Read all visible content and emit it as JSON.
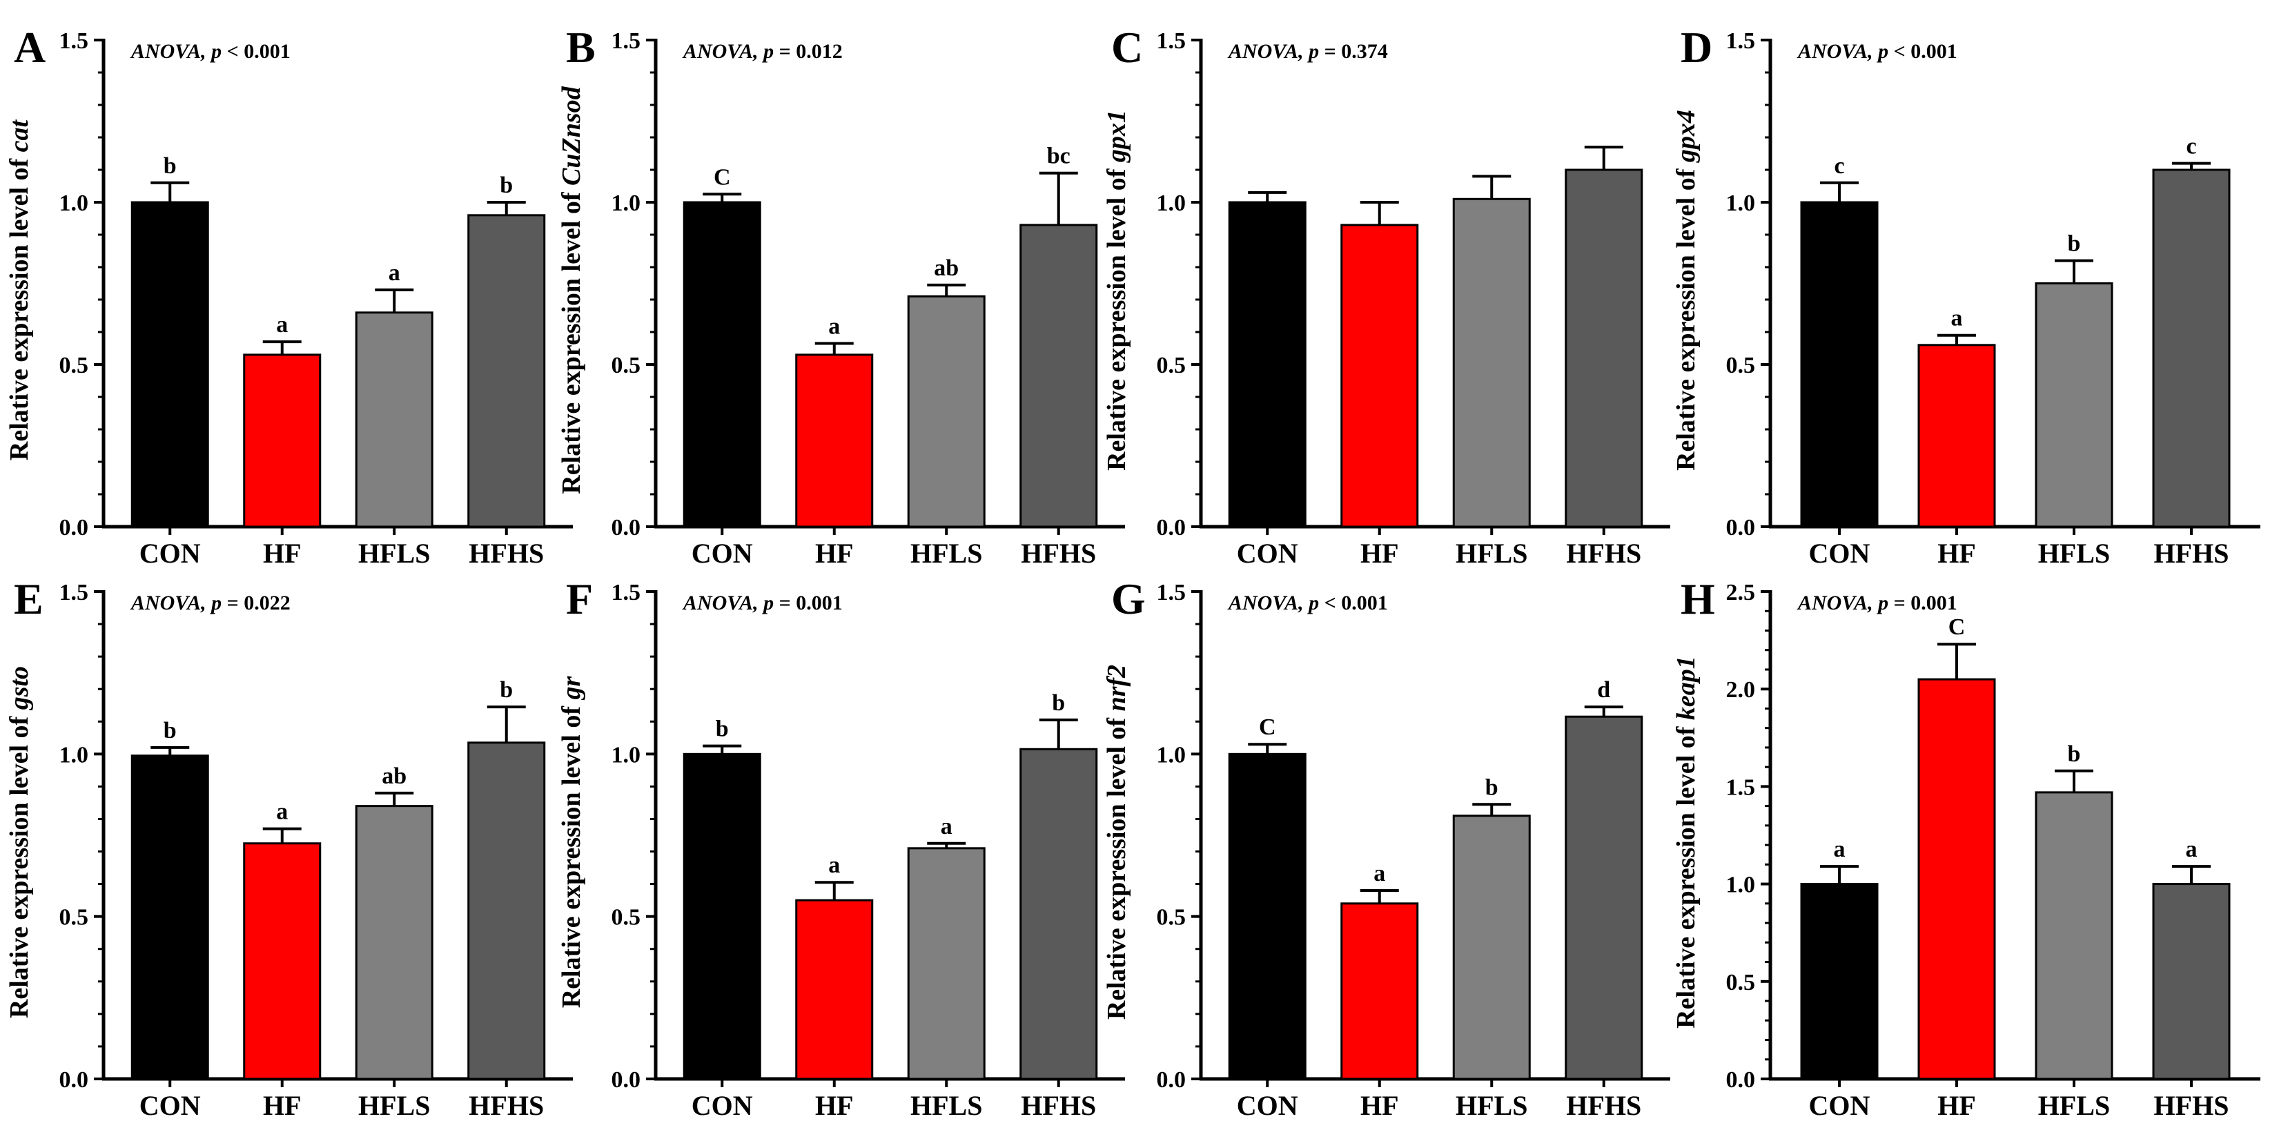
{
  "chart_data": [
    {
      "panel": "A",
      "type": "bar",
      "gene": "cat",
      "ylabel_prefix": "Relative expression level of ",
      "anova_label": "ANOVA,",
      "anova_p": "p < 0.001",
      "categories": [
        "CON",
        "HF",
        "HFLS",
        "HFHS"
      ],
      "values": [
        1.0,
        0.53,
        0.66,
        0.96
      ],
      "errors": [
        0.06,
        0.04,
        0.07,
        0.04
      ],
      "letters": [
        "b",
        "a",
        "a",
        "b"
      ],
      "ylim": [
        0,
        1.5
      ],
      "yticks": [
        "0.0",
        "0.5",
        "1.0",
        "1.5"
      ],
      "colors": [
        "#000000",
        "#ff0000",
        "#808080",
        "#5a5a5a"
      ]
    },
    {
      "panel": "B",
      "type": "bar",
      "gene": "CuZnsod",
      "ylabel_prefix": "Relative expression level of ",
      "anova_label": "ANOVA,",
      "anova_p": "p = 0.012",
      "categories": [
        "CON",
        "HF",
        "HFLS",
        "HFHS"
      ],
      "values": [
        1.0,
        0.53,
        0.71,
        0.93
      ],
      "errors": [
        0.025,
        0.035,
        0.035,
        0.16
      ],
      "letters": [
        "C",
        "a",
        "ab",
        "bc"
      ],
      "ylim": [
        0,
        1.5
      ],
      "yticks": [
        "0.0",
        "0.5",
        "1.0",
        "1.5"
      ],
      "colors": [
        "#000000",
        "#ff0000",
        "#808080",
        "#5a5a5a"
      ]
    },
    {
      "panel": "C",
      "type": "bar",
      "gene": "gpx1",
      "ylabel_prefix": "Relative expression level of ",
      "anova_label": "ANOVA,",
      "anova_p": "p = 0.374",
      "categories": [
        "CON",
        "HF",
        "HFLS",
        "HFHS"
      ],
      "values": [
        1.0,
        0.93,
        1.01,
        1.1
      ],
      "errors": [
        0.03,
        0.07,
        0.07,
        0.07
      ],
      "letters": [
        "",
        "",
        "",
        ""
      ],
      "ylim": [
        0,
        1.5
      ],
      "yticks": [
        "0.0",
        "0.5",
        "1.0",
        "1.5"
      ],
      "colors": [
        "#000000",
        "#ff0000",
        "#808080",
        "#5a5a5a"
      ]
    },
    {
      "panel": "D",
      "type": "bar",
      "gene": "gpx4",
      "ylabel_prefix": "Relative expression level of ",
      "anova_label": "ANOVA,",
      "anova_p": "p < 0.001",
      "categories": [
        "CON",
        "HF",
        "HFLS",
        "HFHS"
      ],
      "values": [
        1.0,
        0.56,
        0.75,
        1.1
      ],
      "errors": [
        0.06,
        0.03,
        0.07,
        0.02
      ],
      "letters": [
        "c",
        "a",
        "b",
        "c"
      ],
      "ylim": [
        0,
        1.5
      ],
      "yticks": [
        "0.0",
        "0.5",
        "1.0",
        "1.5"
      ],
      "colors": [
        "#000000",
        "#ff0000",
        "#808080",
        "#5a5a5a"
      ]
    },
    {
      "panel": "E",
      "type": "bar",
      "gene": "gsto",
      "ylabel_prefix": "Relative expression level of ",
      "anova_label": "ANOVA,",
      "anova_p": "p = 0.022",
      "categories": [
        "CON",
        "HF",
        "HFLS",
        "HFHS"
      ],
      "values": [
        0.995,
        0.725,
        0.84,
        1.035
      ],
      "errors": [
        0.025,
        0.045,
        0.04,
        0.11
      ],
      "letters": [
        "b",
        "a",
        "ab",
        "b"
      ],
      "ylim": [
        0,
        1.5
      ],
      "yticks": [
        "0.0",
        "0.5",
        "1.0",
        "1.5"
      ],
      "colors": [
        "#000000",
        "#ff0000",
        "#808080",
        "#5a5a5a"
      ]
    },
    {
      "panel": "F",
      "type": "bar",
      "gene": "gr",
      "ylabel_prefix": "Relative expression level of ",
      "anova_label": "ANOVA,",
      "anova_p": "p = 0.001",
      "categories": [
        "CON",
        "HF",
        "HFLS",
        "HFHS"
      ],
      "values": [
        1.0,
        0.55,
        0.71,
        1.015
      ],
      "errors": [
        0.025,
        0.055,
        0.015,
        0.09
      ],
      "letters": [
        "b",
        "a",
        "a",
        "b"
      ],
      "ylim": [
        0,
        1.5
      ],
      "yticks": [
        "0.0",
        "0.5",
        "1.0",
        "1.5"
      ],
      "colors": [
        "#000000",
        "#ff0000",
        "#808080",
        "#5a5a5a"
      ]
    },
    {
      "panel": "G",
      "type": "bar",
      "gene": "nrf2",
      "ylabel_prefix": "Relative expression level of ",
      "anova_label": "ANOVA,",
      "anova_p": "p < 0.001",
      "categories": [
        "CON",
        "HF",
        "HFLS",
        "HFHS"
      ],
      "values": [
        1.0,
        0.54,
        0.81,
        1.115
      ],
      "errors": [
        0.03,
        0.04,
        0.035,
        0.03
      ],
      "letters": [
        "C",
        "a",
        "b",
        "d"
      ],
      "ylim": [
        0,
        1.5
      ],
      "yticks": [
        "0.0",
        "0.5",
        "1.0",
        "1.5"
      ],
      "colors": [
        "#000000",
        "#ff0000",
        "#808080",
        "#5a5a5a"
      ]
    },
    {
      "panel": "H",
      "type": "bar",
      "gene": "keap1",
      "ylabel_prefix": "Relative expression level of ",
      "anova_label": "ANOVA,",
      "anova_p": "p = 0.001",
      "categories": [
        "CON",
        "HF",
        "HFLS",
        "HFHS"
      ],
      "values": [
        1.0,
        2.05,
        1.47,
        1.0
      ],
      "errors": [
        0.09,
        0.18,
        0.11,
        0.09
      ],
      "letters": [
        "a",
        "C",
        "b",
        "a"
      ],
      "ylim": [
        0,
        2.5
      ],
      "yticks": [
        "0.0",
        "0.5",
        "1.0",
        "1.5",
        "2.0",
        "2.5"
      ],
      "colors": [
        "#000000",
        "#ff0000",
        "#808080",
        "#5a5a5a"
      ]
    }
  ]
}
